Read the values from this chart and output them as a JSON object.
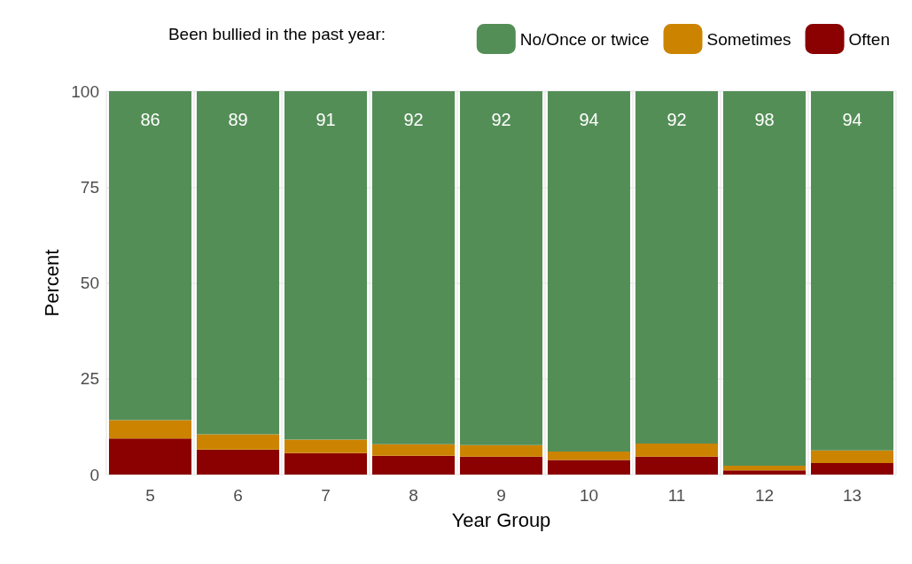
{
  "chart_data": {
    "type": "bar",
    "stacked": true,
    "xlabel": "Year Group",
    "ylabel": "Percent",
    "legend_title": "Been bullied in the past year:",
    "legend": "top",
    "categories": [
      "5",
      "6",
      "7",
      "8",
      "9",
      "10",
      "11",
      "12",
      "13"
    ],
    "series": [
      {
        "name": "Often",
        "color": "#8b0000",
        "values": [
          9.4,
          6.5,
          5.6,
          4.9,
          4.7,
          3.8,
          4.7,
          1.1,
          3.0
        ]
      },
      {
        "name": "Sometimes",
        "color": "#cc8400",
        "values": [
          4.8,
          4.0,
          3.5,
          3.0,
          3.0,
          2.2,
          3.4,
          1.2,
          3.3
        ]
      },
      {
        "name": "No/Once or twice",
        "color": "#548e57",
        "values": [
          85.8,
          89.5,
          90.9,
          92.1,
          92.3,
          94.0,
          91.9,
          97.7,
          93.7
        ],
        "value_labels": [
          "86",
          "89",
          "91",
          "92",
          "92",
          "94",
          "92",
          "98",
          "94"
        ]
      }
    ],
    "ylim": [
      0,
      100
    ],
    "yticks": [
      0,
      25,
      50,
      75,
      100
    ],
    "grid": true
  }
}
